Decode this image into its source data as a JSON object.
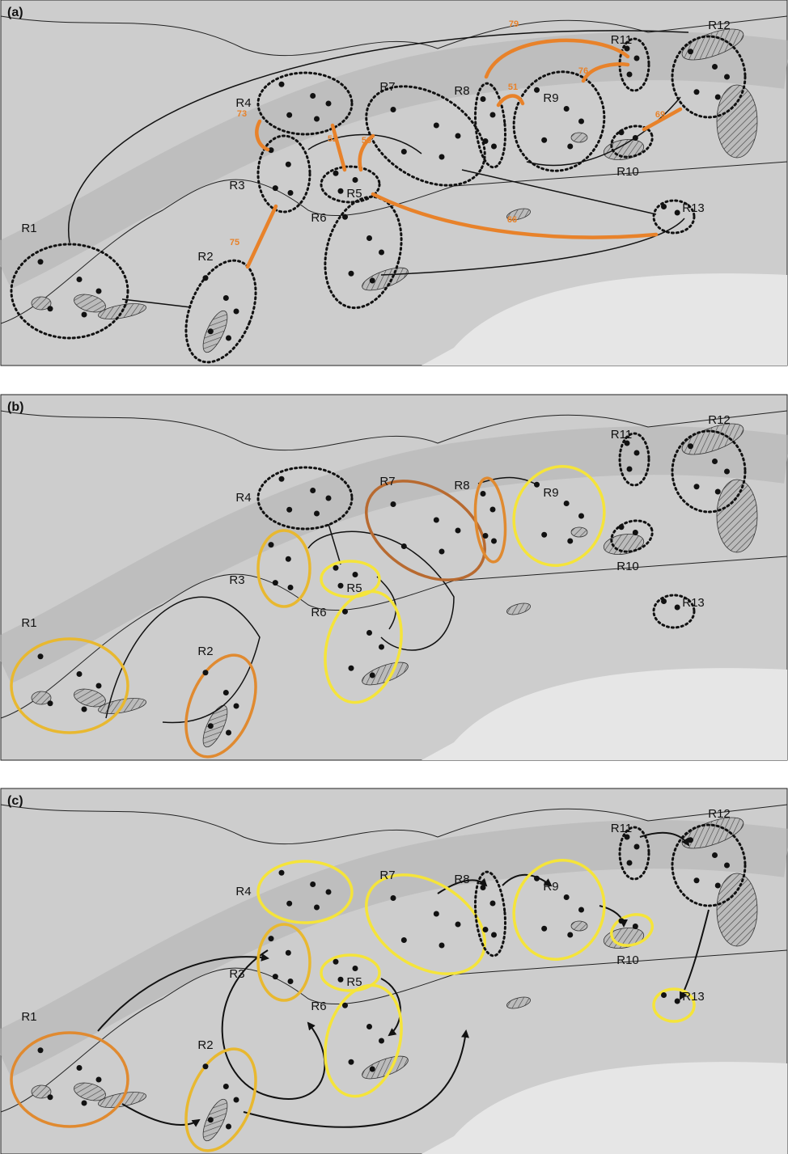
{
  "panels": [
    {
      "label": "(a)",
      "regions": [
        "R1",
        "R2",
        "R3",
        "R4",
        "R5",
        "R6",
        "R7",
        "R8",
        "R9",
        "R10",
        "R11",
        "R12",
        "R13"
      ],
      "link_labels": [
        79,
        76,
        51,
        73,
        52,
        56,
        69,
        75,
        66
      ]
    },
    {
      "label": "(b)",
      "regions": [
        "R1",
        "R2",
        "R3",
        "R4",
        "R5",
        "R6",
        "R7",
        "R8",
        "R9",
        "R10",
        "R11",
        "R12",
        "R13"
      ]
    },
    {
      "label": "(c)",
      "regions": [
        "R1",
        "R2",
        "R3",
        "R4",
        "R5",
        "R6",
        "R7",
        "R8",
        "R9",
        "R10",
        "R11",
        "R12",
        "R13"
      ]
    }
  ]
}
